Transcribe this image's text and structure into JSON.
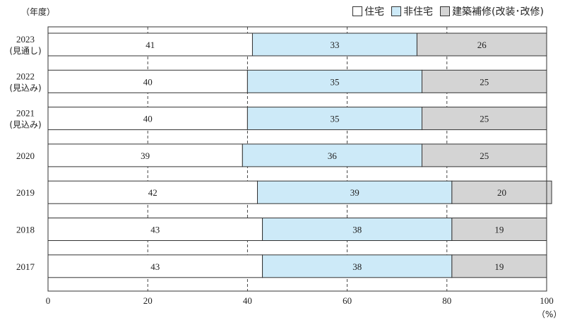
{
  "header": {
    "y_unit": "（年度）",
    "x_unit": "（%）"
  },
  "legend": [
    {
      "label": "住宅",
      "color": "#ffffff"
    },
    {
      "label": "非住宅",
      "color": "#cdeaf8"
    },
    {
      "label": "建築補修(改装･改修)",
      "color": "#d4d4d4"
    }
  ],
  "chart_data": {
    "type": "bar",
    "orientation": "horizontal-stacked",
    "categories": [
      [
        "2023",
        "(見通し)"
      ],
      [
        "2022",
        "(見込み)"
      ],
      [
        "2021",
        "(見込み)"
      ],
      [
        "2020"
      ],
      [
        "2019"
      ],
      [
        "2018"
      ],
      [
        "2017"
      ]
    ],
    "series": [
      {
        "name": "住宅",
        "color": "#ffffff",
        "values": [
          41,
          40,
          40,
          39,
          42,
          43,
          43
        ]
      },
      {
        "name": "非住宅",
        "color": "#cdeaf8",
        "values": [
          33,
          35,
          35,
          36,
          39,
          38,
          38
        ]
      },
      {
        "name": "建築補修(改装･改修)",
        "color": "#d4d4d4",
        "values": [
          26,
          25,
          25,
          25,
          20,
          19,
          19
        ]
      }
    ],
    "xlim": [
      0,
      100
    ],
    "xticks": [
      0,
      20,
      40,
      60,
      80,
      100
    ],
    "grid": "dashed vertical",
    "legend_position": "top-right"
  }
}
